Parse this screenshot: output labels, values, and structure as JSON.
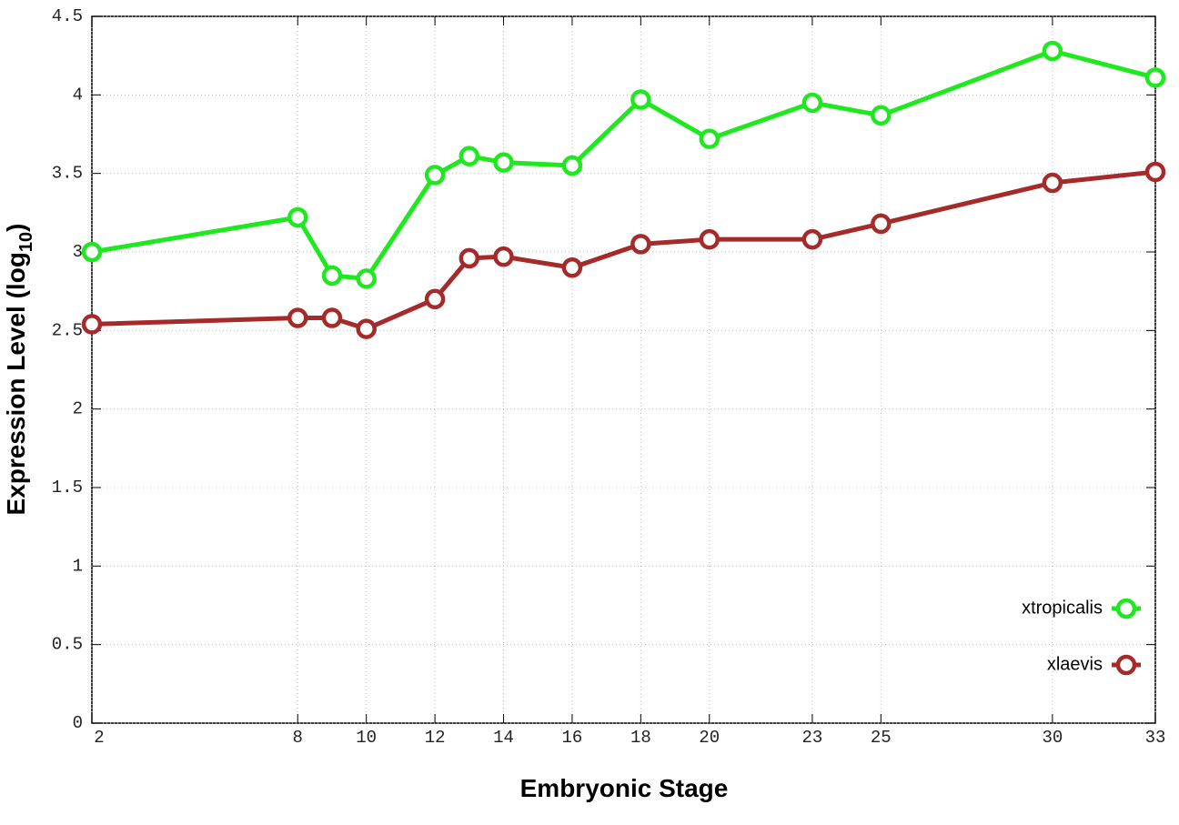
{
  "chart_data": {
    "type": "line",
    "x_label": "Embryonic Stage",
    "y_label": {
      "text": "Expression Level (log",
      "subscript": "10",
      "suffix": ")"
    },
    "x": [
      2,
      8,
      9,
      10,
      12,
      13,
      14,
      16,
      18,
      20,
      23,
      25,
      30,
      33
    ],
    "series": [
      {
        "name": "xtropicalis",
        "color": "#1ee81e",
        "values": [
          3.0,
          3.22,
          2.85,
          2.83,
          3.49,
          3.61,
          3.57,
          3.55,
          3.97,
          3.72,
          3.95,
          3.87,
          4.28,
          4.11
        ]
      },
      {
        "name": "xlaevis",
        "color": "#a52a2a",
        "values": [
          2.54,
          2.58,
          2.58,
          2.51,
          2.7,
          2.96,
          2.97,
          2.9,
          3.05,
          3.08,
          3.08,
          3.18,
          3.44,
          3.51
        ]
      }
    ],
    "xlim": [
      2,
      33
    ],
    "xticks": [
      2,
      8,
      10,
      12,
      14,
      16,
      18,
      20,
      23,
      25,
      30,
      33
    ],
    "ylim": [
      0,
      4.5
    ],
    "yticks": [
      0,
      0.5,
      1,
      1.5,
      2,
      2.5,
      3,
      3.5,
      4,
      4.5
    ],
    "grid": true,
    "legend": "lower right"
  }
}
